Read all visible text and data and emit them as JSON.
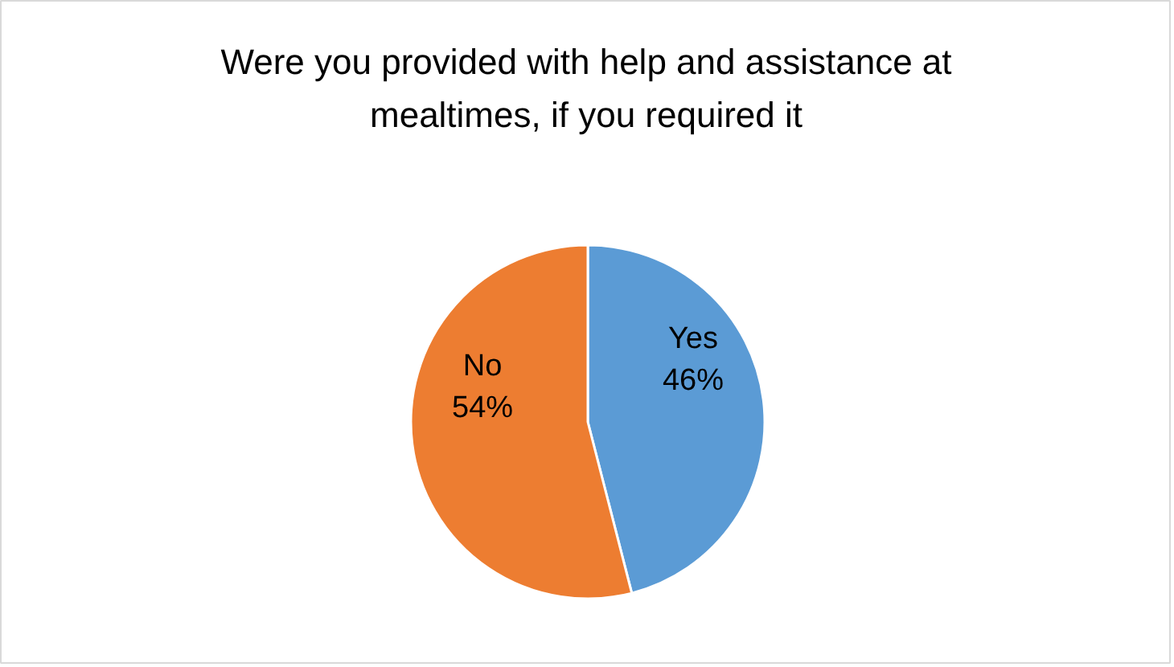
{
  "chart_data": {
    "type": "pie",
    "title": "Were you provided with help and assistance at mealtimes, if you required it",
    "categories": [
      "Yes",
      "No"
    ],
    "values": [
      46,
      54
    ],
    "colors": [
      "#5b9bd5",
      "#ed7d31"
    ],
    "value_labels": [
      "46%",
      "54%"
    ]
  }
}
